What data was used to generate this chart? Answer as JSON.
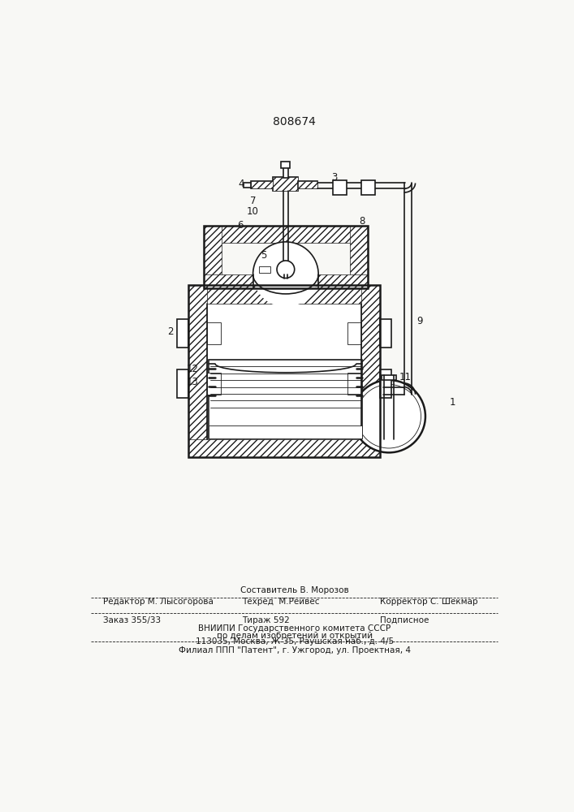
{
  "patent_number": "808674",
  "bg_color": "#f8f8f5",
  "line_color": "#1a1a1a",
  "footer_text": {
    "sestavitel": "Составитель В. Морозов",
    "redaktor": "Редактор М. Лысогорова",
    "tehred": "Техред  М.Рейвес",
    "korrektor": "Корректор С. Шекмар",
    "zakaz": "Заказ 355/33",
    "tirazh": "Тираж 592",
    "podpisnoe": "Подписное",
    "vniipи": "ВНИИПИ Государственного комитета СССР",
    "po_delam": "по делам изобретений и открытий",
    "address": "113035, Москва, Ж-35, Раушская наб., д. 4/5",
    "filial": "Филиал ППП \"Патент\", г. Ужгород, ул. Проектная, 4"
  }
}
